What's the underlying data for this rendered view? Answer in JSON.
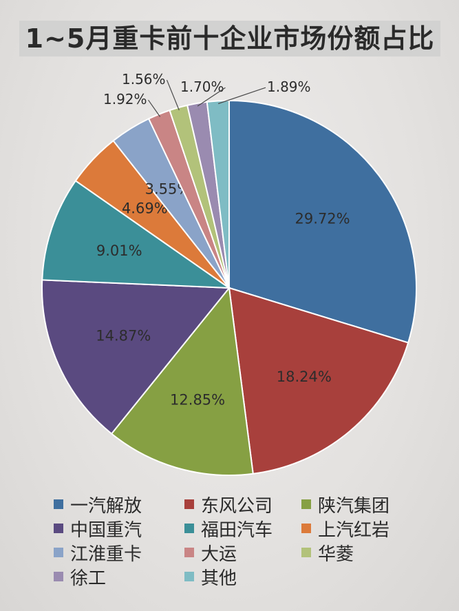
{
  "chart_data": {
    "type": "pie",
    "title": "1~5月重卡前十企业市场份额占比",
    "slices": [
      {
        "name": "一汽解放",
        "value": 29.72,
        "label": "29.72%",
        "color": "#3f6f9f"
      },
      {
        "name": "东风公司",
        "value": 18.24,
        "label": "18.24%",
        "color": "#a8403c"
      },
      {
        "name": "陕汽集团",
        "value": 12.85,
        "label": "12.85%",
        "color": "#86a043"
      },
      {
        "name": "中国重汽",
        "value": 14.87,
        "label": "14.87%",
        "color": "#5a4a80"
      },
      {
        "name": "福田汽车",
        "value": 9.01,
        "label": "9.01%",
        "color": "#3b8f98"
      },
      {
        "name": "上汽红岩",
        "value": 4.69,
        "label": "4.69%",
        "color": "#dc7a3a"
      },
      {
        "name": "江淮重卡",
        "value": 3.55,
        "label": "3.55%",
        "color": "#8aa3c8"
      },
      {
        "name": "大运",
        "value": 1.92,
        "label": "1.92%",
        "color": "#c98585"
      },
      {
        "name": "华菱",
        "value": 1.56,
        "label": "1.56%",
        "color": "#b2c27a"
      },
      {
        "name": "徐工",
        "value": 1.7,
        "label": "1.70%",
        "color": "#9a8bb0"
      },
      {
        "name": "其他",
        "value": 1.89,
        "label": "1.89%",
        "color": "#7fbcc4"
      }
    ],
    "legend_position": "bottom"
  }
}
